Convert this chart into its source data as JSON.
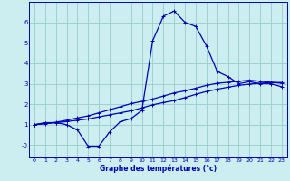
{
  "xlabel": "Graphe des températures (°c)",
  "bg_color": "#cceef0",
  "line_color": "#0000bb",
  "grid_color": "#99cccc",
  "x_ticks": [
    0,
    1,
    2,
    3,
    4,
    5,
    6,
    7,
    8,
    9,
    10,
    11,
    12,
    13,
    14,
    15,
    16,
    17,
    18,
    19,
    20,
    21,
    22,
    23
  ],
  "y_ticks": [
    0,
    1,
    2,
    3,
    4,
    5,
    6
  ],
  "y_tick_labels": [
    "-0",
    "1",
    "2",
    "3",
    "4",
    "5",
    "6"
  ],
  "curve1_x": [
    0,
    1,
    2,
    3,
    4,
    5,
    6,
    7,
    8,
    9,
    10,
    11,
    12,
    13,
    14,
    15,
    16,
    17,
    18,
    19,
    20,
    21,
    22,
    23
  ],
  "curve1_y": [
    1.0,
    1.1,
    1.1,
    1.0,
    0.75,
    -0.05,
    -0.05,
    0.65,
    1.15,
    1.3,
    1.7,
    5.1,
    6.3,
    6.55,
    6.0,
    5.8,
    4.85,
    3.6,
    3.35,
    3.0,
    3.1,
    3.0,
    3.0,
    2.85
  ],
  "curve2_x": [
    0,
    1,
    2,
    3,
    4,
    5,
    6,
    7,
    8,
    9,
    10,
    11,
    12,
    13,
    14,
    15,
    16,
    17,
    18,
    19,
    20,
    21,
    22,
    23
  ],
  "curve2_y": [
    1.0,
    1.05,
    1.1,
    1.15,
    1.22,
    1.28,
    1.38,
    1.48,
    1.58,
    1.68,
    1.82,
    1.97,
    2.08,
    2.18,
    2.32,
    2.48,
    2.62,
    2.73,
    2.83,
    2.92,
    2.98,
    3.02,
    3.06,
    3.06
  ],
  "curve3_x": [
    0,
    1,
    2,
    3,
    4,
    5,
    6,
    7,
    8,
    9,
    10,
    11,
    12,
    13,
    14,
    15,
    16,
    17,
    18,
    19,
    20,
    21,
    22,
    23
  ],
  "curve3_y": [
    1.0,
    1.06,
    1.12,
    1.22,
    1.33,
    1.43,
    1.58,
    1.73,
    1.88,
    2.03,
    2.14,
    2.25,
    2.4,
    2.55,
    2.65,
    2.78,
    2.92,
    3.02,
    3.07,
    3.12,
    3.17,
    3.12,
    3.07,
    3.02
  ],
  "ylim": [
    -0.6,
    7.0
  ],
  "xlim": [
    -0.5,
    23.5
  ]
}
